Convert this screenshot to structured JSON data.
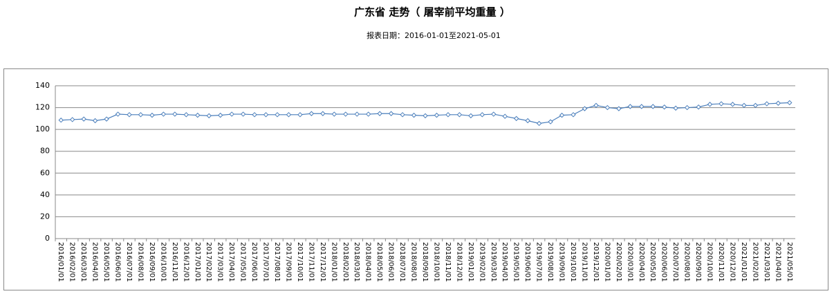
{
  "chart_data": {
    "type": "line",
    "title": "广东省 走势（ 屠宰前平均重量 ）",
    "subtitle": "报表日期：2016-01-01至2021-05-01",
    "categories": [
      "2016/01/01",
      "2016/02/01",
      "2016/03/01",
      "2016/04/01",
      "2016/05/01",
      "2016/06/01",
      "2016/07/01",
      "2016/08/01",
      "2016/09/01",
      "2016/10/01",
      "2016/11/01",
      "2016/12/01",
      "2017/01/01",
      "2017/02/01",
      "2017/03/01",
      "2017/04/01",
      "2017/05/01",
      "2017/06/01",
      "2017/07/01",
      "2017/08/01",
      "2017/09/01",
      "2017/10/01",
      "2017/11/01",
      "2017/12/01",
      "2018/01/01",
      "2018/02/01",
      "2018/03/01",
      "2018/04/01",
      "2018/05/01",
      "2018/06/01",
      "2018/07/01",
      "2018/08/01",
      "2018/09/01",
      "2018/10/01",
      "2018/11/01",
      "2018/12/01",
      "2019/01/01",
      "2019/02/01",
      "2019/03/01",
      "2019/04/01",
      "2019/05/01",
      "2019/06/01",
      "2019/07/01",
      "2019/08/01",
      "2019/09/01",
      "2019/10/01",
      "2019/11/01",
      "2019/12/01",
      "2020/01/01",
      "2020/02/01",
      "2020/03/01",
      "2020/04/01",
      "2020/05/01",
      "2020/06/01",
      "2020/07/01",
      "2020/08/01",
      "2020/09/01",
      "2020/10/01",
      "2020/11/01",
      "2020/12/01",
      "2021/01/01",
      "2021/02/01",
      "2021/03/01",
      "2021/04/01",
      "2021/05/01"
    ],
    "values": [
      108.5,
      109,
      109.5,
      108,
      109.5,
      114,
      113.5,
      113.5,
      113,
      114,
      114,
      113.5,
      113,
      112.5,
      113,
      114,
      114,
      113.5,
      113.5,
      113.5,
      113.5,
      113.5,
      114.5,
      114.5,
      114,
      114,
      114,
      114,
      114.5,
      114.5,
      113.5,
      113,
      112.5,
      113,
      113.5,
      113.5,
      112.5,
      113.5,
      114,
      112,
      110,
      108,
      105.5,
      107,
      113,
      113.5,
      119,
      122,
      120,
      119,
      121,
      121,
      121,
      120.5,
      119.5,
      120,
      120.5,
      123,
      123.5,
      123,
      122,
      122,
      123.5,
      124,
      124.5
    ],
    "color": "#4a7ebb",
    "ylim": [
      0,
      140
    ],
    "yticks": [
      0,
      20,
      40,
      60,
      80,
      100,
      120,
      140
    ],
    "grid": true
  }
}
